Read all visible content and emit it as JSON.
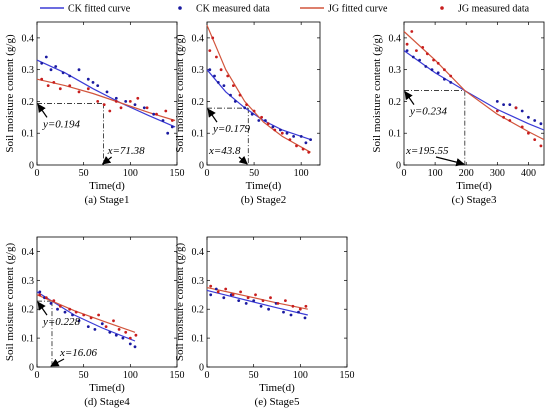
{
  "legend": {
    "items": [
      {
        "label": "CK fitted curve",
        "kind": "line",
        "color": "#3b3bd6"
      },
      {
        "label": "CK measured data",
        "kind": "dots",
        "color": "#1a1aa0"
      },
      {
        "label": "JG fitted curve",
        "kind": "line",
        "color": "#d2553c"
      },
      {
        "label": "JG measured data",
        "kind": "dots",
        "color": "#c81e1e"
      }
    ]
  },
  "chart_data": [
    {
      "type": "scatter",
      "caption": "(a) Stage1",
      "xlabel": "Time(d)",
      "ylabel": "Soil moisture content (g/g)",
      "xlim": [
        0,
        150
      ],
      "ylim": [
        0,
        0.45
      ],
      "xticks": [
        "0",
        "50",
        "100",
        "150"
      ],
      "yticks": [
        "0",
        "0.1",
        "0.2",
        "0.3",
        "0.4"
      ],
      "series": [
        {
          "name": "CK fitted curve",
          "kind": "line",
          "color": "#3b3bd6",
          "x": [
            0,
            30,
            60,
            90,
            120,
            148
          ],
          "y": [
            0.33,
            0.29,
            0.24,
            0.195,
            0.155,
            0.12
          ]
        },
        {
          "name": "JG fitted curve",
          "kind": "line",
          "color": "#d2553c",
          "x": [
            0,
            30,
            60,
            90,
            120,
            148
          ],
          "y": [
            0.27,
            0.25,
            0.225,
            0.195,
            0.165,
            0.14
          ]
        },
        {
          "name": "CK measured data",
          "kind": "dots",
          "color": "#1a1aa0",
          "x": [
            5,
            10,
            15,
            20,
            28,
            35,
            45,
            55,
            60,
            65,
            75,
            85,
            95,
            105,
            115,
            125,
            135,
            140,
            145
          ],
          "y": [
            0.32,
            0.34,
            0.3,
            0.31,
            0.29,
            0.28,
            0.3,
            0.27,
            0.26,
            0.25,
            0.23,
            0.21,
            0.2,
            0.19,
            0.18,
            0.16,
            0.14,
            0.1,
            0.12
          ]
        },
        {
          "name": "JG measured data",
          "kind": "dots",
          "color": "#c81e1e",
          "x": [
            5,
            12,
            18,
            25,
            35,
            45,
            55,
            65,
            72,
            78,
            85,
            90,
            100,
            108,
            118,
            128,
            138,
            145
          ],
          "y": [
            0.27,
            0.25,
            0.26,
            0.24,
            0.25,
            0.23,
            0.24,
            0.2,
            0.19,
            0.17,
            0.2,
            0.18,
            0.2,
            0.21,
            0.18,
            0.16,
            0.17,
            0.14
          ]
        }
      ],
      "guide": {
        "x": 71.38,
        "y": 0.194
      },
      "annotations": {
        "y_label": "y=0.194",
        "x_label": "x=71.38"
      }
    },
    {
      "type": "scatter",
      "caption": "(b) Stage2",
      "xlabel": "Time(d)",
      "ylabel": "Soil moisture content (g/g)",
      "xlim": [
        0,
        120
      ],
      "ylim": [
        0,
        0.45
      ],
      "xticks": [
        "0",
        "50",
        "100"
      ],
      "yticks": [
        "0",
        "0.1",
        "0.2",
        "0.3",
        "0.4"
      ],
      "series": [
        {
          "name": "CK fitted curve",
          "kind": "line",
          "color": "#3b3bd6",
          "x": [
            0,
            20,
            40,
            60,
            80,
            110
          ],
          "y": [
            0.3,
            0.23,
            0.18,
            0.14,
            0.11,
            0.08
          ]
        },
        {
          "name": "JG fitted curve",
          "kind": "line",
          "color": "#d2553c",
          "x": [
            0,
            20,
            40,
            60,
            80,
            110
          ],
          "y": [
            0.44,
            0.3,
            0.2,
            0.135,
            0.09,
            0.04
          ]
        },
        {
          "name": "CK measured data",
          "kind": "dots",
          "color": "#1a1aa0",
          "x": [
            3,
            8,
            12,
            18,
            25,
            30,
            40,
            48,
            55,
            62,
            70,
            78,
            85,
            92,
            100,
            105,
            110
          ],
          "y": [
            0.3,
            0.28,
            0.26,
            0.25,
            0.22,
            0.2,
            0.18,
            0.16,
            0.14,
            0.14,
            0.12,
            0.11,
            0.1,
            0.09,
            0.09,
            0.07,
            0.08
          ]
        },
        {
          "name": "JG measured data",
          "kind": "dots",
          "color": "#c81e1e",
          "x": [
            3,
            6,
            10,
            15,
            22,
            28,
            35,
            42,
            50,
            58,
            65,
            72,
            80,
            88,
            95,
            102,
            108
          ],
          "y": [
            0.36,
            0.4,
            0.34,
            0.3,
            0.28,
            0.25,
            0.22,
            0.19,
            0.17,
            0.15,
            0.13,
            0.11,
            0.1,
            0.08,
            0.06,
            0.05,
            0.04
          ]
        }
      ],
      "guide": {
        "x": 43.8,
        "y": 0.179
      },
      "annotations": {
        "y_label": "y=0.179",
        "x_label": "x=43.8"
      }
    },
    {
      "type": "scatter",
      "caption": "(c) Stage3",
      "xlabel": "Time(d)",
      "ylabel": "Soil moisture content (g/g)",
      "xlim": [
        0,
        450
      ],
      "ylim": [
        0,
        0.45
      ],
      "xticks": [
        "0",
        "100",
        "200",
        "300",
        "400"
      ],
      "yticks": [
        "0",
        "0.1",
        "0.2",
        "0.3",
        "0.4"
      ],
      "series": [
        {
          "name": "CK fitted curve",
          "kind": "line",
          "color": "#3b3bd6",
          "x": [
            0,
            100,
            195.55,
            300,
            400,
            450
          ],
          "y": [
            0.36,
            0.29,
            0.234,
            0.175,
            0.13,
            0.11
          ]
        },
        {
          "name": "JG fitted curve",
          "kind": "line",
          "color": "#d2553c",
          "x": [
            0,
            100,
            195.55,
            300,
            400,
            450
          ],
          "y": [
            0.42,
            0.33,
            0.234,
            0.16,
            0.105,
            0.08
          ]
        },
        {
          "name": "CK measured data",
          "kind": "dots",
          "color": "#1a1aa0",
          "x": [
            10,
            30,
            50,
            70,
            90,
            110,
            130,
            150,
            300,
            320,
            340,
            360,
            380,
            400,
            420,
            440
          ],
          "y": [
            0.36,
            0.34,
            0.33,
            0.31,
            0.3,
            0.29,
            0.27,
            0.26,
            0.2,
            0.19,
            0.19,
            0.18,
            0.17,
            0.15,
            0.14,
            0.13
          ]
        },
        {
          "name": "JG measured data",
          "kind": "dots",
          "color": "#c81e1e",
          "x": [
            10,
            25,
            40,
            60,
            75,
            95,
            110,
            130,
            150,
            300,
            320,
            340,
            360,
            380,
            400,
            420,
            440
          ],
          "y": [
            0.38,
            0.42,
            0.36,
            0.37,
            0.35,
            0.33,
            0.32,
            0.3,
            0.28,
            0.17,
            0.15,
            0.14,
            0.18,
            0.12,
            0.1,
            0.08,
            0.06
          ]
        }
      ],
      "guide": {
        "x": 195.55,
        "y": 0.234
      },
      "annotations": {
        "y_label": "y=0.234",
        "x_label": "x=195.55"
      }
    },
    {
      "type": "scatter",
      "caption": "(d) Stage4",
      "xlabel": "Time(d)",
      "ylabel": "Soil moisture content (g/g)",
      "xlim": [
        0,
        150
      ],
      "ylim": [
        0,
        0.45
      ],
      "xticks": [
        "0",
        "50",
        "100",
        "150"
      ],
      "yticks": [
        "0",
        "0.1",
        "0.2",
        "0.3",
        "0.4"
      ],
      "series": [
        {
          "name": "CK fitted curve",
          "kind": "line",
          "color": "#3b3bd6",
          "x": [
            0,
            16.06,
            40,
            70,
            105
          ],
          "y": [
            0.26,
            0.228,
            0.18,
            0.135,
            0.09
          ]
        },
        {
          "name": "JG fitted curve",
          "kind": "line",
          "color": "#d2553c",
          "x": [
            0,
            16.06,
            40,
            70,
            105
          ],
          "y": [
            0.25,
            0.228,
            0.195,
            0.16,
            0.12
          ]
        },
        {
          "name": "CK measured data",
          "kind": "dots",
          "color": "#1a1aa0",
          "x": [
            3,
            8,
            15,
            22,
            30,
            38,
            45,
            55,
            62,
            70,
            78,
            85,
            92,
            100,
            105
          ],
          "y": [
            0.26,
            0.24,
            0.22,
            0.2,
            0.19,
            0.18,
            0.16,
            0.14,
            0.13,
            0.15,
            0.12,
            0.11,
            0.1,
            0.08,
            0.07
          ]
        },
        {
          "name": "JG measured data",
          "kind": "dots",
          "color": "#c81e1e",
          "x": [
            3,
            10,
            18,
            25,
            35,
            42,
            50,
            58,
            66,
            74,
            82,
            88,
            95,
            100,
            106
          ],
          "y": [
            0.25,
            0.24,
            0.23,
            0.21,
            0.2,
            0.19,
            0.18,
            0.17,
            0.18,
            0.14,
            0.16,
            0.13,
            0.12,
            0.1,
            0.11
          ]
        }
      ],
      "guide": {
        "x": 16.06,
        "y": 0.228
      },
      "annotations": {
        "y_label": "y=0.228",
        "x_label": "x=16.06"
      }
    },
    {
      "type": "scatter",
      "caption": "(e) Stage5",
      "xlabel": "Time(d)",
      "ylabel": "Soil moisture content (g/g)",
      "xlim": [
        0,
        150
      ],
      "ylim": [
        0,
        0.45
      ],
      "xticks": [
        "0",
        "50",
        "100",
        "150"
      ],
      "yticks": [
        "0",
        "0.1",
        "0.2",
        "0.3",
        "0.4"
      ],
      "series": [
        {
          "name": "CK fitted curve",
          "kind": "line",
          "color": "#3b3bd6",
          "x": [
            0,
            25,
            50,
            75,
            108
          ],
          "y": [
            0.265,
            0.245,
            0.225,
            0.205,
            0.18
          ]
        },
        {
          "name": "JG fitted curve",
          "kind": "line",
          "color": "#d2553c",
          "x": [
            0,
            25,
            50,
            75,
            108
          ],
          "y": [
            0.275,
            0.258,
            0.24,
            0.222,
            0.2
          ]
        },
        {
          "name": "CK measured data",
          "kind": "dots",
          "color": "#1a1aa0",
          "x": [
            4,
            10,
            18,
            26,
            34,
            42,
            50,
            58,
            66,
            74,
            82,
            90,
            98,
            105
          ],
          "y": [
            0.25,
            0.27,
            0.24,
            0.25,
            0.23,
            0.22,
            0.23,
            0.21,
            0.2,
            0.22,
            0.19,
            0.18,
            0.19,
            0.17
          ]
        },
        {
          "name": "JG measured data",
          "kind": "dots",
          "color": "#c81e1e",
          "x": [
            4,
            12,
            20,
            28,
            36,
            44,
            52,
            60,
            68,
            76,
            84,
            92,
            100,
            106
          ],
          "y": [
            0.28,
            0.26,
            0.27,
            0.25,
            0.26,
            0.24,
            0.25,
            0.23,
            0.24,
            0.22,
            0.23,
            0.21,
            0.2,
            0.21
          ]
        }
      ],
      "guide": null,
      "annotations": null
    }
  ]
}
